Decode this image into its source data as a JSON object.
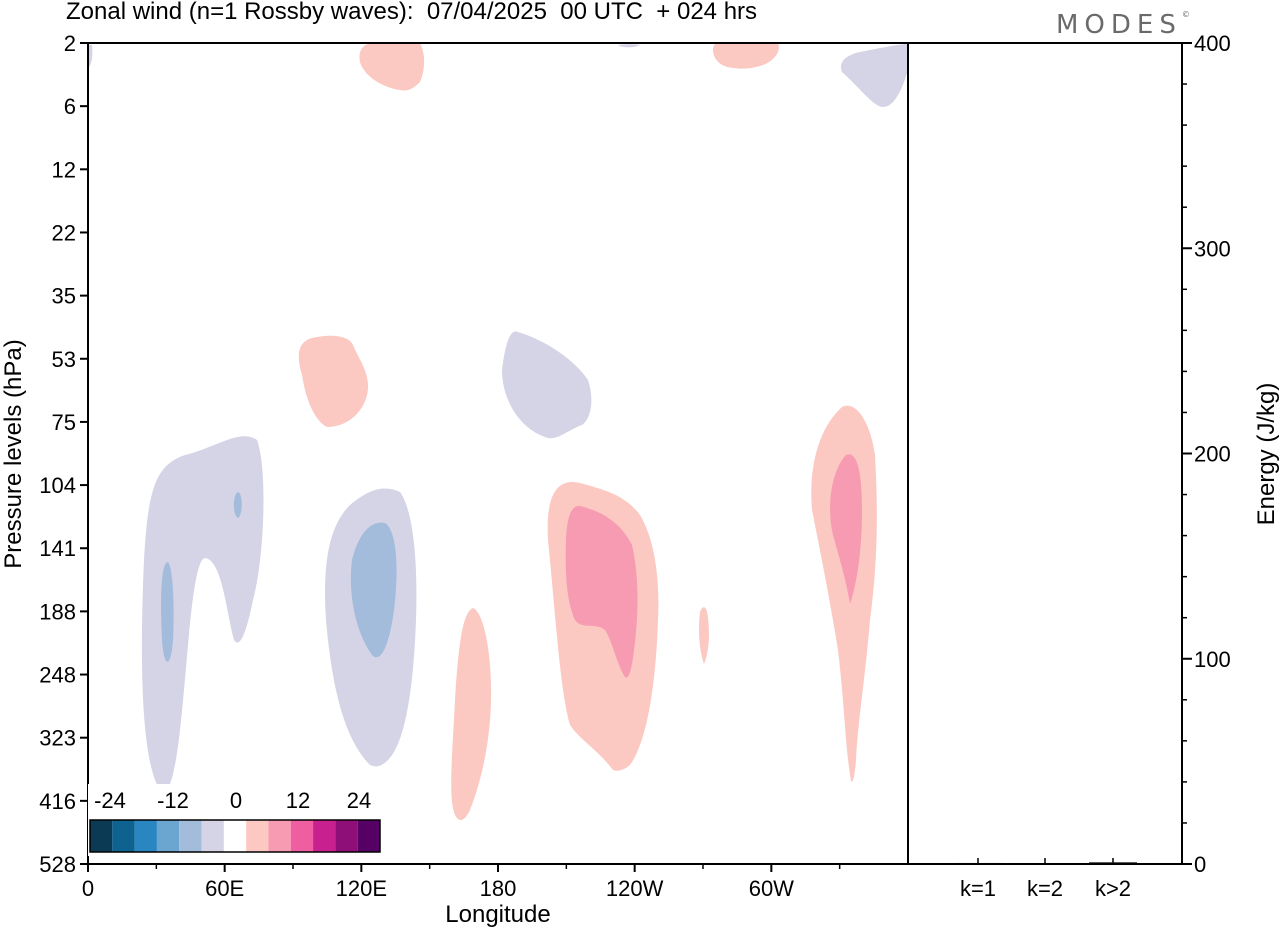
{
  "header": {
    "title": "Zonal wind (n=1 Rossby waves):  07/04/2025  00 UTC  + 024 hrs",
    "brand": "MODES",
    "brand_mark": "©"
  },
  "chart_data": [
    {
      "type": "heatmap",
      "title": "Zonal wind (n=1 Rossby waves):  07/04/2025  00 UTC  + 024 hrs",
      "xlabel": "Longitude",
      "ylabel": "Pressure levels (hPa)",
      "x_ticks": [
        "0",
        "60E",
        "120E",
        "180",
        "120W",
        "60W"
      ],
      "x_tick_degrees": [
        0,
        60,
        120,
        180,
        240,
        300
      ],
      "xlim": [
        0,
        360
      ],
      "y_ticks": [
        "2",
        "6",
        "12",
        "22",
        "35",
        "53",
        "75",
        "104",
        "141",
        "188",
        "248",
        "323",
        "416",
        "528"
      ],
      "y_scale": "model levels, top to bottom",
      "grid": false,
      "colorbar": {
        "placement": "bottom-left",
        "tick_labels": [
          "-24",
          "-12",
          "0",
          "12",
          "24"
        ],
        "colors": [
          "#0b3a55",
          "#0e6290",
          "#2a86c0",
          "#6aa6d0",
          "#a3bcdc",
          "#d4d4e6",
          "#ffffff",
          "#fbc8c2",
          "#f79bb2",
          "#ee5ea0",
          "#c8208e",
          "#8e0f78",
          "#560066"
        ]
      },
      "features": [
        {
          "sign": "negative",
          "lon_range": [
            15,
            78
          ],
          "levels": [
            "75",
            "416"
          ],
          "value": -6
        },
        {
          "sign": "negative",
          "lon_range": [
            32,
            37
          ],
          "levels": [
            "141",
            "248"
          ],
          "value": -12
        },
        {
          "sign": "negative",
          "lon_range": [
            63,
            68
          ],
          "levels": [
            "104",
            "141"
          ],
          "value": -12
        },
        {
          "sign": "negative",
          "lon_range": [
            103,
            138
          ],
          "levels": [
            "104",
            "323"
          ],
          "value": -6
        },
        {
          "sign": "negative",
          "lon_range": [
            115,
            130
          ],
          "levels": [
            "141",
            "248"
          ],
          "value": -12
        },
        {
          "sign": "negative",
          "lon_range": [
            183,
            220
          ],
          "levels": [
            "53",
            "75"
          ],
          "value": -6
        },
        {
          "sign": "negative",
          "lon_range": [
            330,
            360
          ],
          "levels": [
            "2",
            "6"
          ],
          "value": -6
        },
        {
          "sign": "positive",
          "lon_range": [
            95,
            123
          ],
          "levels": [
            "53",
            "75"
          ],
          "value": 6
        },
        {
          "sign": "positive",
          "lon_range": [
            120,
            148
          ],
          "levels": [
            "2",
            "6"
          ],
          "value": 6
        },
        {
          "sign": "positive",
          "lon_range": [
            160,
            178
          ],
          "levels": [
            "188",
            "416"
          ],
          "value": 6
        },
        {
          "sign": "positive",
          "lon_range": [
            200,
            250
          ],
          "levels": [
            "104",
            "416"
          ],
          "value": 6
        },
        {
          "sign": "positive",
          "lon_range": [
            210,
            240
          ],
          "levels": [
            "104",
            "248"
          ],
          "value": 12
        },
        {
          "sign": "positive",
          "lon_range": [
            268,
            273
          ],
          "levels": [
            "188",
            "248"
          ],
          "value": 6
        },
        {
          "sign": "positive",
          "lon_range": [
            275,
            305
          ],
          "levels": [
            "2",
            "6"
          ],
          "value": 6
        },
        {
          "sign": "positive",
          "lon_range": [
            318,
            346
          ],
          "levels": [
            "75",
            "416"
          ],
          "value": 6
        },
        {
          "sign": "positive",
          "lon_range": [
            326,
            338
          ],
          "levels": [
            "104",
            "188"
          ],
          "value": 12
        }
      ]
    },
    {
      "type": "bar",
      "ylabel": "Energy (J/kg)",
      "categories": [
        "k=1",
        "k=2",
        "k>2"
      ],
      "values": [
        0.5,
        0.3,
        0.8
      ],
      "ylim": [
        0,
        400
      ],
      "y_ticks": [
        "0",
        "100",
        "200",
        "300",
        "400"
      ]
    }
  ]
}
